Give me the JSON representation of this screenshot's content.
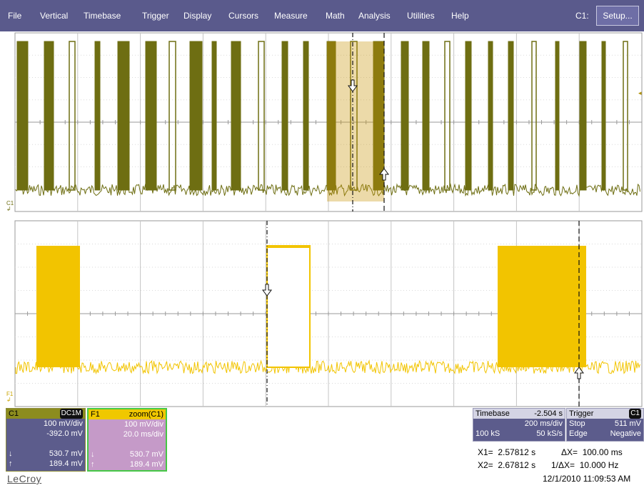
{
  "menu": {
    "items": [
      "File",
      "Vertical",
      "Timebase",
      "Trigger",
      "Display",
      "Cursors",
      "Measure",
      "Math",
      "Analysis",
      "Utilities",
      "Help"
    ],
    "channel_label": "C1:",
    "setup_button": "Setup..."
  },
  "trace_markers": {
    "c1": "C1",
    "f1": "F1"
  },
  "colors": {
    "menubar": "#5a5a8c",
    "c1_trace": "#6e6e12",
    "f1_trace": "#f2c400",
    "cursor_highlight": "#c8960a"
  },
  "c1_box": {
    "name": "C1",
    "coupling": "DC1M",
    "vdiv": "100 mV/div",
    "offset": "-392.0 mV",
    "cursor_low": "530.7 mV",
    "cursor_high": "189.4 mV"
  },
  "f1_box": {
    "name": "F1",
    "function": "zoom(C1)",
    "vdiv": "100 mV/div",
    "tdiv": "20.0 ms/div",
    "cursor_low": "530.7 mV",
    "cursor_high": "189.4 mV"
  },
  "timebase_box": {
    "label": "Timebase",
    "delay": "-2.504 s",
    "tdiv": "200 ms/div",
    "samples": "100 kS",
    "rate": "50 kS/s"
  },
  "trigger_box": {
    "label": "Trigger",
    "channel": "C1",
    "mode": "Stop",
    "level": "511 mV",
    "type": "Edge",
    "slope": "Negative"
  },
  "cursors": {
    "x1_label": "X1=",
    "x1": "2.57812 s",
    "dx_label": "ΔX=",
    "dx": "100.00 ms",
    "x2_label": "X2=",
    "x2": "2.67812 s",
    "inv_dx_label": "1/ΔX=",
    "inv_dx": "10.000 Hz"
  },
  "timestamp": "12/1/2010 11:09:53 AM",
  "brand": "LeCroy"
}
